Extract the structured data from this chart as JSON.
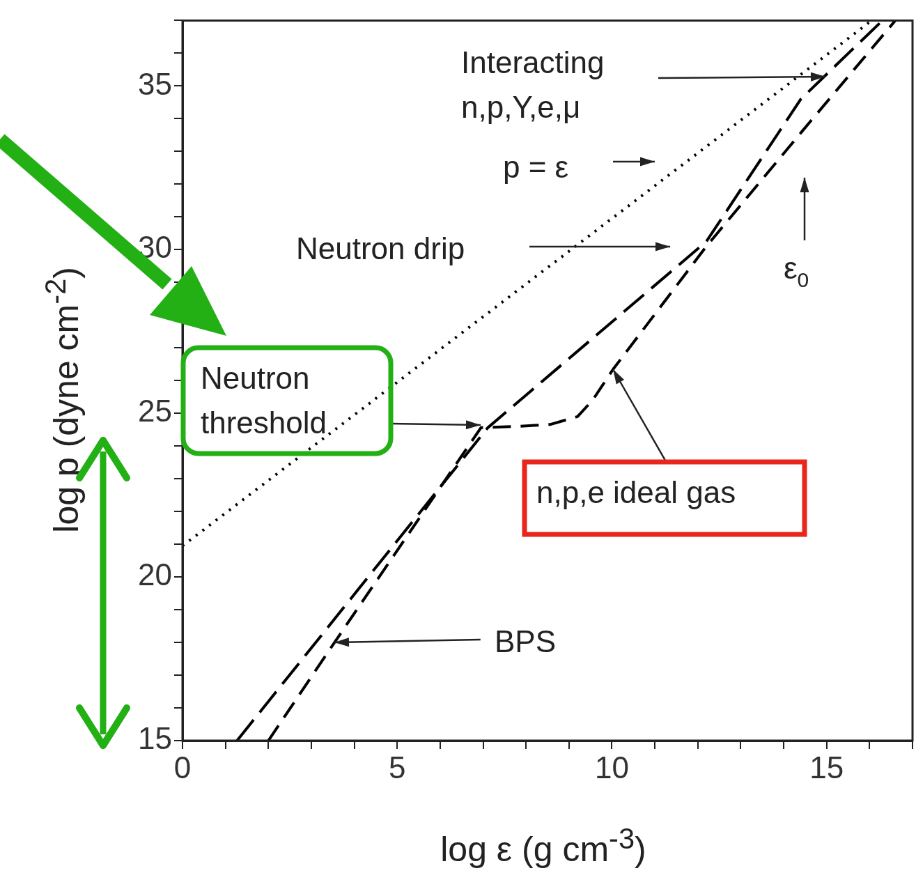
{
  "chart_data": {
    "type": "line",
    "xlabel": "log ε (g cm$^{-3}$)",
    "ylabel": "log p (dyne cm$^{-2}$)",
    "xlim": [
      0,
      17
    ],
    "ylim": [
      15,
      37
    ],
    "xticks": [
      0,
      {
        "value": 1,
        "label": null
      },
      {
        "value": 2,
        "label": null
      },
      {
        "value": 3,
        "label": null
      },
      {
        "value": 4,
        "label": null
      },
      5,
      {
        "value": 6,
        "label": null
      },
      {
        "value": 7,
        "label": null
      },
      {
        "value": 8,
        "label": null
      },
      {
        "value": 9,
        "label": null
      },
      10,
      {
        "value": 11,
        "label": null
      },
      {
        "value": 12,
        "label": null
      },
      {
        "value": 13,
        "label": null
      },
      {
        "value": 14,
        "label": null
      },
      15,
      {
        "value": 16,
        "label": null
      },
      {
        "value": 17,
        "label": null
      }
    ],
    "yticks": [
      15,
      {
        "value": 16,
        "label": null
      },
      {
        "value": 17,
        "label": null
      },
      {
        "value": 18,
        "label": null
      },
      {
        "value": 19,
        "label": null
      },
      20,
      {
        "value": 21,
        "label": null
      },
      {
        "value": 22,
        "label": null
      },
      {
        "value": 23,
        "label": null
      },
      {
        "value": 24,
        "label": null
      },
      25,
      {
        "value": 26,
        "label": null
      },
      {
        "value": 27,
        "label": null
      },
      {
        "value": 28,
        "label": null
      },
      {
        "value": 29,
        "label": null
      },
      30,
      {
        "value": 31,
        "label": null
      },
      {
        "value": 32,
        "label": null
      },
      {
        "value": 33,
        "label": null
      },
      {
        "value": 34,
        "label": null
      },
      35,
      {
        "value": 36,
        "label": null
      },
      {
        "value": 37,
        "label": null
      }
    ],
    "series": [
      {
        "color": "#000000",
        "line_style": "dotted",
        "x": [
          0,
          16.05
        ],
        "values": [
          20.95,
          37
        ]
      },
      {
        "color": "#000000",
        "line_style": "dashed",
        "x": [
          1.27,
          7.11,
          12.2,
          14.4,
          16.3
        ],
        "values": [
          15,
          24.56,
          30.25,
          34.6,
          37
        ]
      },
      {
        "color": "#000000",
        "line_style": "dashed",
        "x": [
          2,
          3.54,
          6.95,
          7.8,
          8.57,
          9.2,
          9.55,
          10.03,
          12.2,
          14.42,
          16.6
        ],
        "values": [
          15,
          18,
          24.56,
          24.6,
          24.66,
          24.9,
          25.4,
          26.35,
          30.1,
          33.6,
          37
        ]
      }
    ],
    "grid": false,
    "legend": false,
    "annotations": [
      "Interacting\nn,p,Y,e,μ",
      "p = ε",
      "Neutron drip",
      "ε$_{0}$",
      "Neutron\nthreshold",
      {
        "text": "n,p,e ideal gas",
        "x": 10.03,
        "y": 26.35
      },
      {
        "text": "BPS",
        "x": 3.54,
        "y": 18
      }
    ]
  }
}
